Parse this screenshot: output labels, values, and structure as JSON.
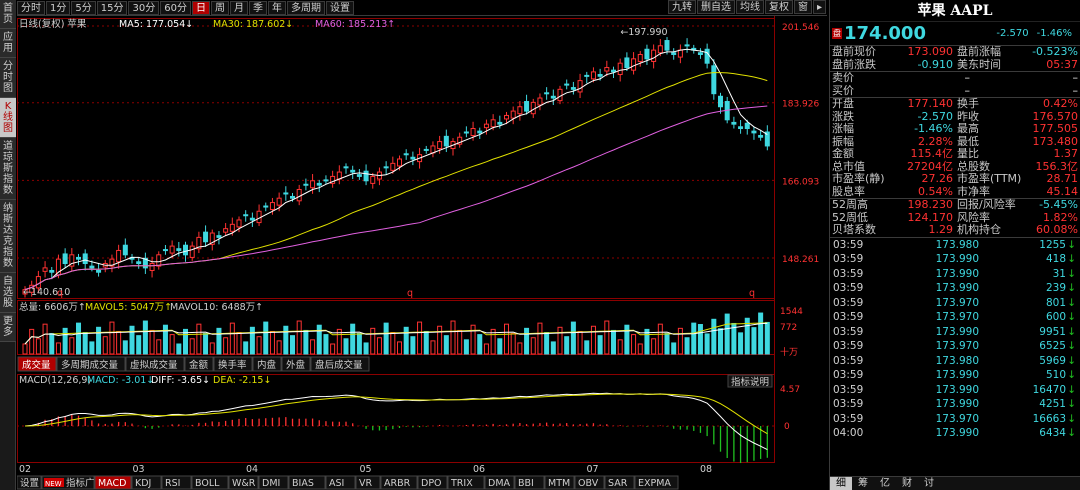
{
  "left_tabs": [
    {
      "label": "首页",
      "active": false
    },
    {
      "label": "应用",
      "active": false
    },
    {
      "label": "分时图",
      "active": false
    },
    {
      "label": "K线图",
      "active": true
    },
    {
      "label": "道琼斯指数",
      "active": false
    },
    {
      "label": "纳斯达克指数",
      "active": false
    },
    {
      "label": "自选股",
      "active": false
    },
    {
      "label": "更多",
      "active": false
    }
  ],
  "periods": [
    "分时",
    "1分",
    "5分",
    "15分",
    "30分",
    "60分",
    "日",
    "周",
    "月",
    "季",
    "年",
    "多周期",
    "设置"
  ],
  "active_period": "日",
  "tools": [
    "九转",
    "删自选",
    "均线",
    "复权",
    "窗",
    "▸"
  ],
  "kline": {
    "header_left": "日线(复权)  苹果",
    "ma5": "MA5: 177.054↓",
    "ma30": "MA30: 187.602↓",
    "ma60": "MA60: 185.213↑",
    "y_ticks": [
      "201.546",
      "183.926",
      "166.093",
      "148.261"
    ],
    "high_label": "197.990",
    "low_label": "140.610",
    "marker_q": "q"
  },
  "volume": {
    "header": "总量: 6606万↑",
    "mavol5": "MAVOL5: 5047万↑",
    "mavol10": "MAVOL10: 6488万↑",
    "y_ticks": [
      "1544",
      "772",
      "十万"
    ]
  },
  "sub_tabs": [
    "成交量",
    "多周期成交量",
    "虚拟成交量",
    "金额",
    "换手率",
    "内盘",
    "外盘",
    "盘后成交量"
  ],
  "active_sub_tab": "成交量",
  "macd": {
    "header": "MACD(12,26,9)",
    "macd_val": "MACD: -3.01↓",
    "diff": "DIFF: -3.65↓",
    "dea": "DEA: -2.15↓",
    "indicator_btn": "指标说明",
    "y_ticks": [
      "4.57",
      "0"
    ]
  },
  "x_labels": [
    "02",
    "03",
    "04",
    "05",
    "06",
    "07",
    "08"
  ],
  "indicator_tabs": [
    "设置",
    "指标广场",
    "MACD",
    "KDJ",
    "RSI",
    "BOLL",
    "W&R",
    "DMI",
    "BIAS",
    "ASI",
    "VR",
    "ARBR",
    "DPO",
    "TRIX",
    "DMA",
    "BBI",
    "MTM",
    "OBV",
    "SAR",
    "EXPMA"
  ],
  "active_indicator": "MACD",
  "new_badge": "NEW",
  "quote": {
    "title": "苹果 AAPL",
    "tag": "盘",
    "price": "174.000",
    "change": "-2.570",
    "pct": "-1.46%",
    "pre": [
      [
        "盘前现价",
        "173.090",
        "盘前涨幅",
        "-0.523%"
      ],
      [
        "盘前涨跌",
        "-0.910",
        "美东时间",
        "05:37"
      ]
    ],
    "bidask": [
      [
        "卖价",
        "–",
        "–"
      ],
      [
        "买价",
        "–",
        "–"
      ]
    ],
    "stats": [
      [
        "开盘",
        "177.140",
        "换手",
        "0.42%"
      ],
      [
        "涨跌",
        "-2.570",
        "昨收",
        "176.570"
      ],
      [
        "涨幅",
        "-1.46%",
        "最高",
        "177.505"
      ],
      [
        "振幅",
        "2.28%",
        "最低",
        "173.480"
      ],
      [
        "金额",
        "115.4亿",
        "量比",
        "1.37"
      ],
      [
        "总市值",
        "27204亿",
        "总股数",
        "156.3亿"
      ],
      [
        "市盈率(静)",
        "27.26",
        "市盈率(TTM)",
        "28.71"
      ],
      [
        "股息率",
        "0.54%",
        "市净率",
        "45.14"
      ]
    ],
    "week52": [
      [
        "52周高",
        "198.230",
        "回报/风险率",
        "-5.45%"
      ],
      [
        "52周低",
        "124.170",
        "风险率",
        "1.82%"
      ],
      [
        "贝塔系数",
        "1.29",
        "机构持仓",
        "60.08%"
      ]
    ],
    "ticks": [
      [
        "03:59",
        "173.980",
        "1255"
      ],
      [
        "03:59",
        "173.990",
        "418"
      ],
      [
        "03:59",
        "173.990",
        "31"
      ],
      [
        "03:59",
        "173.990",
        "239"
      ],
      [
        "03:59",
        "173.970",
        "801"
      ],
      [
        "03:59",
        "173.970",
        "600"
      ],
      [
        "03:59",
        "173.990",
        "9951"
      ],
      [
        "03:59",
        "173.970",
        "6525"
      ],
      [
        "03:59",
        "173.980",
        "5969"
      ],
      [
        "03:59",
        "173.990",
        "510"
      ],
      [
        "03:59",
        "173.990",
        "16470"
      ],
      [
        "03:59",
        "173.990",
        "4251"
      ],
      [
        "03:59",
        "173.970",
        "16663"
      ],
      [
        "04:00",
        "173.990",
        "6434"
      ]
    ],
    "bottom_tabs": [
      "细",
      "筹",
      "亿",
      "财",
      "讨"
    ],
    "active_bottom": "细"
  },
  "colors": {
    "up": "#ff3232",
    "down": "#3fd8e0",
    "ma5": "#ffffff",
    "ma30": "#e0e000",
    "ma60": "#e060e0",
    "grid": "#8b0000"
  },
  "chart_data": {
    "type": "candlestick",
    "y_range": [
      140,
      202
    ],
    "closes": [
      141,
      142,
      144,
      146,
      145,
      148,
      147,
      149,
      148,
      147,
      146,
      145,
      147,
      148,
      150,
      149,
      148,
      147,
      146,
      147,
      149,
      150,
      151,
      150,
      149,
      151,
      153,
      152,
      154,
      153,
      155,
      156,
      157,
      158,
      157,
      159,
      160,
      161,
      162,
      163,
      162,
      164,
      165,
      166,
      165,
      166,
      167,
      168,
      169,
      168,
      167,
      166,
      167,
      168,
      169,
      170,
      171,
      172,
      171,
      172,
      173,
      174,
      175,
      174,
      175,
      176,
      177,
      178,
      177,
      179,
      180,
      179,
      181,
      182,
      183,
      182,
      184,
      185,
      186,
      185,
      187,
      188,
      187,
      189,
      190,
      191,
      190,
      192,
      191,
      193,
      192,
      194,
      195,
      194,
      196,
      197,
      196,
      195,
      196,
      197,
      196,
      195,
      193,
      186,
      183,
      180,
      179,
      178,
      178,
      177,
      176,
      174
    ]
  }
}
